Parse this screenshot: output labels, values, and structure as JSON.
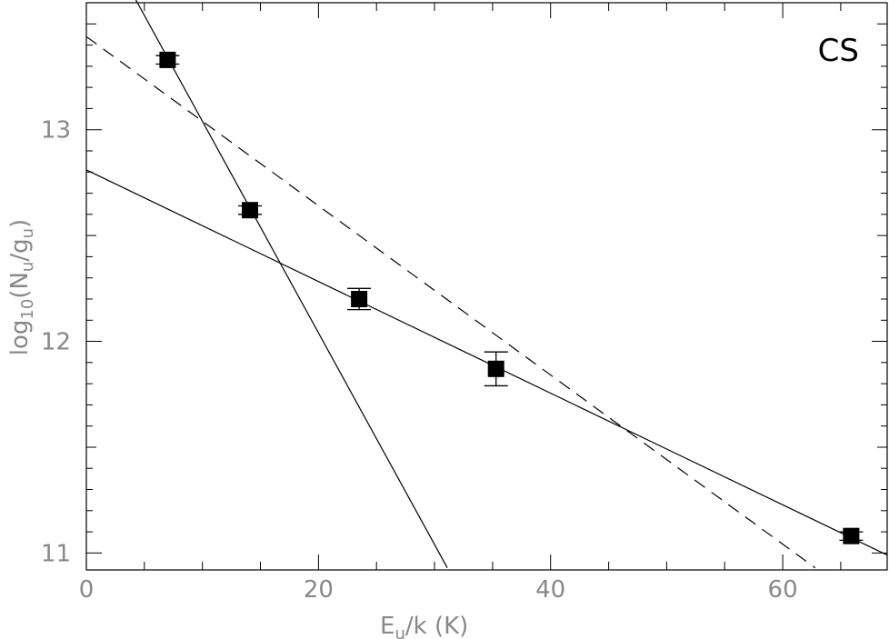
{
  "chart_data": {
    "type": "scatter",
    "title": "",
    "annotation": "CS",
    "xlabel": "E_u/k (K)",
    "xlabel_main": "E",
    "xlabel_sub": "u",
    "xlabel_rest": "/k (K)",
    "ylabel": "log10(N_u/g_u)",
    "ylabel_parts": [
      "log",
      "10",
      "(N",
      "u",
      "/g",
      "u",
      ")"
    ],
    "xlim": [
      0,
      69
    ],
    "ylim": [
      10.92,
      13.6
    ],
    "xticks_major": [
      0,
      20,
      40,
      60
    ],
    "xticks_major_labels": [
      "0",
      "20",
      "40",
      "60"
    ],
    "yticks_major": [
      11,
      12,
      13
    ],
    "yticks_major_labels": [
      "11",
      "12",
      "13"
    ],
    "grid": false,
    "points": [
      {
        "x": 7.0,
        "y": 13.33,
        "err": 0.02
      },
      {
        "x": 14.1,
        "y": 12.62,
        "err": 0.02
      },
      {
        "x": 23.5,
        "y": 12.2,
        "err": 0.05
      },
      {
        "x": 35.3,
        "y": 11.87,
        "err": 0.08
      },
      {
        "x": 65.9,
        "y": 11.08,
        "err": 0.02
      }
    ],
    "lines": [
      {
        "style": "solid",
        "x": [
          0,
          69
        ],
        "y": [
          12.81,
          10.99
        ]
      },
      {
        "style": "solid",
        "x": [
          4.2,
          31.1
        ],
        "y": [
          13.62,
          10.93
        ]
      },
      {
        "style": "dashed",
        "x": [
          0,
          62.8
        ],
        "y": [
          13.44,
          10.93
        ]
      }
    ]
  }
}
